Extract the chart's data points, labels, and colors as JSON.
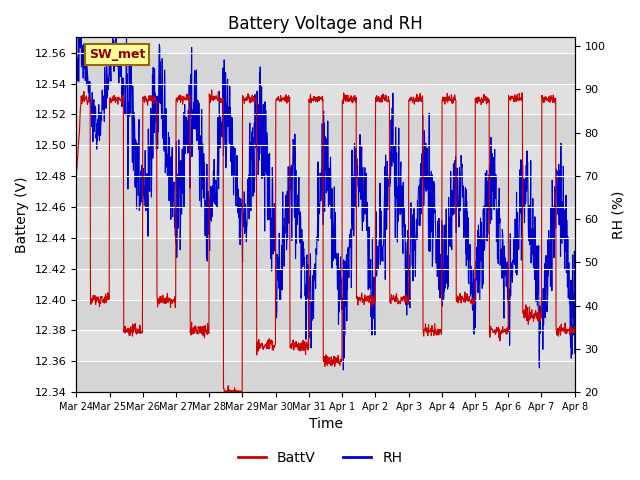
{
  "title": "Battery Voltage and RH",
  "xlabel": "Time",
  "ylabel_left": "Battery (V)",
  "ylabel_right": "RH (%)",
  "ylim_left": [
    12.34,
    12.57
  ],
  "ylim_right": [
    20,
    102
  ],
  "yticks_left": [
    12.34,
    12.36,
    12.38,
    12.4,
    12.42,
    12.44,
    12.46,
    12.48,
    12.5,
    12.52,
    12.54,
    12.56
  ],
  "yticks_right": [
    20,
    30,
    40,
    50,
    60,
    70,
    80,
    90,
    100
  ],
  "x_tick_labels": [
    "Mar 24",
    "Mar 25",
    "Mar 26",
    "Mar 27",
    "Mar 28",
    "Mar 29",
    "Mar 30",
    "Mar 31",
    "Apr 1",
    "Apr 2",
    "Apr 3",
    "Apr 4",
    "Apr 5",
    "Apr 6",
    "Apr 7",
    "Apr 8"
  ],
  "station_label": "SW_met",
  "legend_entries": [
    "BattV",
    "RH"
  ],
  "line_colors": [
    "#cc0000",
    "#0000cc"
  ],
  "background_color": "#ffffff",
  "plot_bg_color": "#e0e0e0",
  "grid_color": "#ffffff",
  "alt_band_color": "#cccccc",
  "title_fontsize": 12,
  "axis_fontsize": 10,
  "tick_fontsize": 8,
  "legend_fontsize": 10,
  "n_days": 15,
  "n_points_per_day": 96,
  "rh_min": 20,
  "rh_max": 100,
  "batt_min": 12.34,
  "batt_max": 12.57
}
